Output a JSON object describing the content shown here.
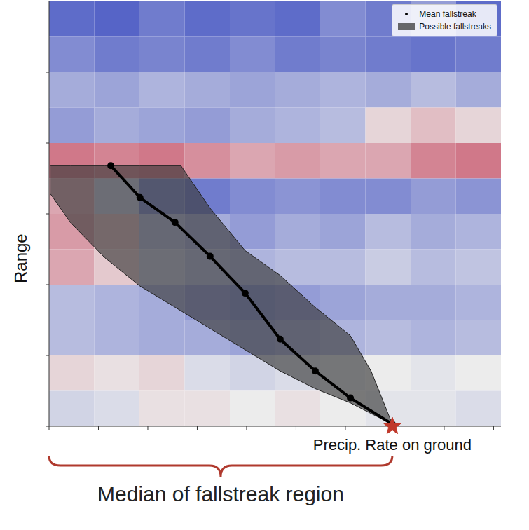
{
  "chart_data": {
    "type": "line",
    "xlim": [
      0,
      9.15
    ],
    "ylim": [
      0,
      6
    ],
    "xticks": [
      0,
      1,
      2,
      3,
      4,
      5,
      6,
      7,
      8,
      9
    ],
    "yticks": [
      0,
      1,
      2,
      3,
      4,
      5
    ],
    "tick_labels": false,
    "y_label": "Range",
    "legend": "upper right",
    "heatmap": {
      "color_range": [
        -1,
        1
      ],
      "cells": [
        [
          -0.8,
          -0.85,
          -0.7,
          -0.8,
          -0.75,
          -0.8,
          -0.6,
          -0.7,
          -0.5,
          -0.8
        ],
        [
          -0.6,
          -0.7,
          -0.65,
          -0.7,
          -0.6,
          -0.7,
          -0.65,
          -0.7,
          -0.75,
          -0.7
        ],
        [
          -0.4,
          -0.45,
          -0.35,
          -0.4,
          -0.45,
          -0.4,
          -0.35,
          -0.4,
          -0.3,
          -0.4
        ],
        [
          -0.5,
          -0.4,
          -0.45,
          -0.5,
          -0.4,
          -0.35,
          -0.3,
          0.1,
          0.2,
          0.1
        ],
        [
          0.5,
          0.45,
          0.5,
          0.4,
          0.3,
          0.35,
          0.3,
          0.3,
          0.45,
          0.5
        ],
        [
          0.3,
          -0.2,
          -0.6,
          -0.7,
          -0.6,
          -0.55,
          -0.6,
          -0.6,
          -0.5,
          -0.55
        ],
        [
          0.35,
          0.2,
          -0.3,
          -0.4,
          -0.5,
          -0.4,
          -0.45,
          -0.3,
          -0.4,
          -0.35
        ],
        [
          0.3,
          0.15,
          -0.2,
          -0.3,
          -0.35,
          -0.3,
          -0.3,
          -0.2,
          -0.3,
          -0.25
        ],
        [
          -0.3,
          -0.35,
          -0.4,
          -0.5,
          -0.55,
          -0.5,
          -0.45,
          -0.4,
          -0.4,
          -0.35
        ],
        [
          -0.3,
          -0.35,
          -0.4,
          -0.4,
          -0.45,
          -0.4,
          -0.35,
          -0.3,
          -0.35,
          -0.3
        ],
        [
          0.1,
          0.05,
          0.1,
          -0.1,
          -0.15,
          -0.1,
          -0.05,
          0.0,
          -0.05,
          0.0
        ],
        [
          -0.15,
          -0.1,
          0.05,
          0.05,
          0.0,
          0.05,
          0.0,
          -0.05,
          -0.05,
          -0.1
        ]
      ]
    },
    "series": [
      {
        "name": "Possible fallstreaks",
        "type": "area",
        "color": "#3a3a3a",
        "x": [
          0.03,
          0.43,
          1.13,
          1.84,
          2.67,
          3.26,
          3.97,
          4.68,
          5.39,
          6.1,
          6.52,
          6.95
        ],
        "low": [
          3.28,
          2.88,
          2.38,
          1.98,
          1.63,
          1.38,
          1.08,
          0.78,
          0.53,
          0.33,
          0.18,
          0.03
        ],
        "high": [
          3.68,
          3.68,
          3.68,
          3.68,
          3.68,
          3.08,
          2.48,
          2.13,
          1.68,
          1.28,
          0.78,
          0.03
        ]
      },
      {
        "name": "Mean fallstreak",
        "type": "line",
        "marker": "dot",
        "color": "#000000",
        "x": [
          1.25,
          1.84,
          2.55,
          3.26,
          3.97,
          4.68,
          5.39,
          6.1,
          6.95
        ],
        "values": [
          3.68,
          3.23,
          2.88,
          2.4,
          1.88,
          1.23,
          0.78,
          0.4,
          0.03
        ]
      }
    ],
    "annotations": [
      {
        "text": "Precip. Rate on ground",
        "x": 6.95,
        "y": 0,
        "marker": "star",
        "color": "#c0392b"
      },
      {
        "text": "Median of fallstreak region",
        "x_range": [
          0,
          6.95
        ],
        "color": "#b03a2e"
      }
    ]
  }
}
